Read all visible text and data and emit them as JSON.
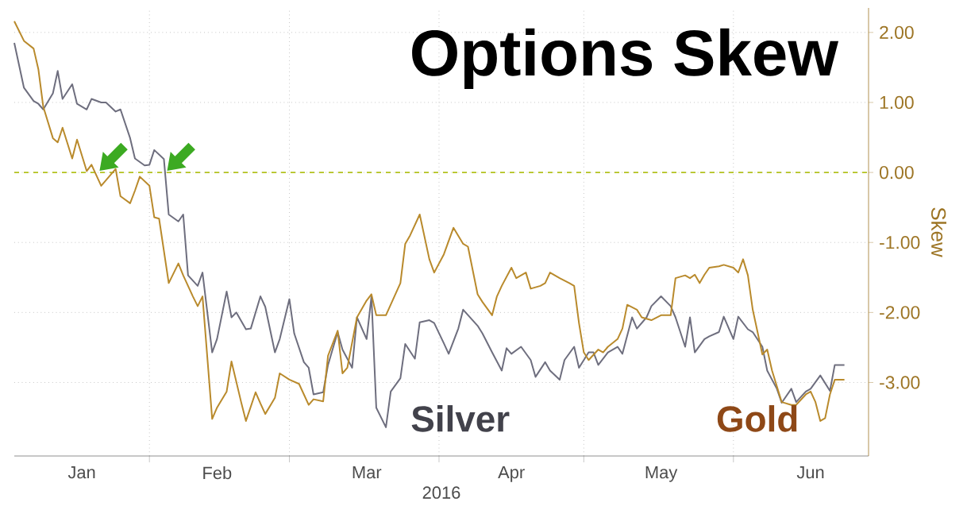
{
  "chart_data": {
    "type": "line",
    "title": "Options Skew",
    "xlabel": "2016",
    "ylabel": "Skew",
    "xlim": [
      "2016-01-04",
      "2016-06-29"
    ],
    "ylim": [
      -4.05,
      2.35
    ],
    "xticks": [
      {
        "value": "2016-01-18",
        "label": "Jan"
      },
      {
        "value": "2016-02-01",
        "label": null
      },
      {
        "value": "2016-02-15",
        "label": "Feb"
      },
      {
        "value": "2016-03-01",
        "label": null
      },
      {
        "value": "2016-03-17",
        "label": "Mar"
      },
      {
        "value": "2016-04-01",
        "label": null
      },
      {
        "value": "2016-04-16",
        "label": "Apr"
      },
      {
        "value": "2016-05-01",
        "label": null
      },
      {
        "value": "2016-05-17",
        "label": "May"
      },
      {
        "value": "2016-06-01",
        "label": null
      },
      {
        "value": "2016-06-17",
        "label": "Jun"
      }
    ],
    "yticks": [
      {
        "value": -3,
        "label": "-3.00"
      },
      {
        "value": -2,
        "label": "-2.00"
      },
      {
        "value": -1,
        "label": "-1.00"
      },
      {
        "value": 0,
        "label": "0.00"
      },
      {
        "value": 1,
        "label": "1.00"
      },
      {
        "value": 2,
        "label": "2.00"
      }
    ],
    "grid": true,
    "ref_lines": [
      {
        "axis": "y",
        "value": 0,
        "color": "#b3c21e",
        "line_style": "dashed"
      }
    ],
    "series": [
      {
        "name": "Silver",
        "color": "#6e6e7e",
        "x": [
          "2016-01-04",
          "2016-01-06",
          "2016-01-08",
          "2016-01-09",
          "2016-01-10",
          "2016-01-12",
          "2016-01-13",
          "2016-01-14",
          "2016-01-16",
          "2016-01-17",
          "2016-01-19",
          "2016-01-20",
          "2016-01-22",
          "2016-01-23",
          "2016-01-25",
          "2016-01-26",
          "2016-01-28",
          "2016-01-29",
          "2016-01-31",
          "2016-02-01",
          "2016-02-02",
          "2016-02-04",
          "2016-02-05",
          "2016-02-07",
          "2016-02-08",
          "2016-02-09",
          "2016-02-11",
          "2016-02-12",
          "2016-02-14",
          "2016-02-15",
          "2016-02-17",
          "2016-02-18",
          "2016-02-19",
          "2016-02-21",
          "2016-02-22",
          "2016-02-24",
          "2016-02-25",
          "2016-02-27",
          "2016-02-28",
          "2016-03-01",
          "2016-03-02",
          "2016-03-04",
          "2016-03-05",
          "2016-03-06",
          "2016-03-08",
          "2016-03-09",
          "2016-03-11",
          "2016-03-12",
          "2016-03-14",
          "2016-03-15",
          "2016-03-17",
          "2016-03-18",
          "2016-03-19",
          "2016-03-21",
          "2016-03-22",
          "2016-03-24",
          "2016-03-25",
          "2016-03-27",
          "2016-03-28",
          "2016-03-30",
          "2016-03-31",
          "2016-04-02",
          "2016-04-03",
          "2016-04-05",
          "2016-04-06",
          "2016-04-09",
          "2016-04-10",
          "2016-04-12",
          "2016-04-14",
          "2016-04-15",
          "2016-04-16",
          "2016-04-18",
          "2016-04-20",
          "2016-04-21",
          "2016-04-23",
          "2016-04-24",
          "2016-04-26",
          "2016-04-27",
          "2016-04-29",
          "2016-04-30",
          "2016-05-02",
          "2016-05-03",
          "2016-05-04",
          "2016-05-06",
          "2016-05-08",
          "2016-05-09",
          "2016-05-11",
          "2016-05-12",
          "2016-05-14",
          "2016-05-15",
          "2016-05-17",
          "2016-05-19",
          "2016-05-20",
          "2016-05-22",
          "2016-05-23",
          "2016-05-24",
          "2016-05-26",
          "2016-05-27",
          "2016-05-29",
          "2016-05-30",
          "2016-06-01",
          "2016-06-02",
          "2016-06-04",
          "2016-06-05",
          "2016-06-07",
          "2016-06-08",
          "2016-06-10",
          "2016-06-11",
          "2016-06-13",
          "2016-06-14",
          "2016-06-16",
          "2016-06-17",
          "2016-06-19",
          "2016-06-21",
          "2016-06-22",
          "2016-06-24"
        ],
        "values": [
          1.85,
          1.21,
          1.02,
          0.98,
          0.9,
          1.13,
          1.45,
          1.05,
          1.26,
          0.98,
          0.9,
          1.05,
          1.0,
          1.0,
          0.87,
          0.9,
          0.49,
          0.2,
          0.1,
          0.11,
          0.32,
          0.19,
          -0.6,
          -0.7,
          -0.6,
          -1.47,
          -1.62,
          -1.43,
          -2.57,
          -2.38,
          -1.7,
          -2.07,
          -2.0,
          -2.24,
          -2.23,
          -1.77,
          -1.92,
          -2.57,
          -2.38,
          -1.81,
          -2.3,
          -2.71,
          -2.79,
          -3.17,
          -3.14,
          -2.75,
          -2.28,
          -2.53,
          -2.79,
          -2.07,
          -2.38,
          -1.77,
          -3.36,
          -3.64,
          -3.13,
          -2.94,
          -2.45,
          -2.66,
          -2.14,
          -2.11,
          -2.15,
          -2.44,
          -2.59,
          -2.23,
          -1.96,
          -2.19,
          -2.3,
          -2.57,
          -2.83,
          -2.51,
          -2.59,
          -2.49,
          -2.68,
          -2.92,
          -2.71,
          -2.83,
          -2.96,
          -2.68,
          -2.49,
          -2.79,
          -2.57,
          -2.57,
          -2.75,
          -2.57,
          -2.49,
          -2.59,
          -2.07,
          -2.23,
          -2.07,
          -1.91,
          -1.77,
          -1.91,
          -2.07,
          -2.49,
          -2.07,
          -2.57,
          -2.38,
          -2.34,
          -2.28,
          -2.06,
          -2.38,
          -2.06,
          -2.24,
          -2.28,
          -2.49,
          -2.83,
          -3.09,
          -3.29,
          -3.09,
          -3.28,
          -3.13,
          -3.09,
          -2.9,
          -3.12,
          -2.75,
          -2.75
        ]
      },
      {
        "name": "Gold",
        "color": "#b98a2c",
        "x": [
          "2016-01-04",
          "2016-01-06",
          "2016-01-08",
          "2016-01-09",
          "2016-01-10",
          "2016-01-12",
          "2016-01-13",
          "2016-01-14",
          "2016-01-16",
          "2016-01-17",
          "2016-01-19",
          "2016-01-20",
          "2016-01-22",
          "2016-01-23",
          "2016-01-25",
          "2016-01-26",
          "2016-01-28",
          "2016-01-29",
          "2016-01-30",
          "2016-02-01",
          "2016-02-02",
          "2016-02-03",
          "2016-02-05",
          "2016-02-07",
          "2016-02-08",
          "2016-02-10",
          "2016-02-11",
          "2016-02-12",
          "2016-02-14",
          "2016-02-15",
          "2016-02-17",
          "2016-02-18",
          "2016-02-20",
          "2016-02-21",
          "2016-02-23",
          "2016-02-24",
          "2016-02-25",
          "2016-02-27",
          "2016-02-28",
          "2016-03-01",
          "2016-03-03",
          "2016-03-05",
          "2016-03-06",
          "2016-03-08",
          "2016-03-09",
          "2016-03-11",
          "2016-03-12",
          "2016-03-13",
          "2016-03-15",
          "2016-03-17",
          "2016-03-18",
          "2016-03-19",
          "2016-03-21",
          "2016-03-24",
          "2016-03-25",
          "2016-03-26",
          "2016-03-28",
          "2016-03-30",
          "2016-03-31",
          "2016-04-02",
          "2016-04-04",
          "2016-04-06",
          "2016-04-07",
          "2016-04-09",
          "2016-04-10",
          "2016-04-12",
          "2016-04-13",
          "2016-04-14",
          "2016-04-16",
          "2016-04-17",
          "2016-04-19",
          "2016-04-20",
          "2016-04-22",
          "2016-04-23",
          "2016-04-24",
          "2016-04-26",
          "2016-04-28",
          "2016-04-29",
          "2016-04-30",
          "2016-05-01",
          "2016-05-02",
          "2016-05-04",
          "2016-05-05",
          "2016-05-06",
          "2016-05-08",
          "2016-05-09",
          "2016-05-10",
          "2016-05-12",
          "2016-05-13",
          "2016-05-15",
          "2016-05-17",
          "2016-05-19",
          "2016-05-20",
          "2016-05-22",
          "2016-05-23",
          "2016-05-24",
          "2016-05-25",
          "2016-05-26",
          "2016-05-27",
          "2016-05-29",
          "2016-05-30",
          "2016-06-01",
          "2016-06-02",
          "2016-06-03",
          "2016-06-04",
          "2016-06-05",
          "2016-06-07",
          "2016-06-08",
          "2016-06-09",
          "2016-06-11",
          "2016-06-13",
          "2016-06-14",
          "2016-06-16",
          "2016-06-17",
          "2016-06-18",
          "2016-06-19",
          "2016-06-20",
          "2016-06-21",
          "2016-06-22",
          "2016-06-24"
        ],
        "values": [
          2.16,
          1.88,
          1.77,
          1.47,
          0.94,
          0.49,
          0.43,
          0.64,
          0.2,
          0.47,
          0.02,
          0.11,
          -0.19,
          -0.11,
          0.05,
          -0.34,
          -0.44,
          -0.26,
          -0.06,
          -0.19,
          -0.64,
          -0.66,
          -1.58,
          -1.3,
          -1.47,
          -1.77,
          -1.91,
          -1.77,
          -3.52,
          -3.36,
          -3.13,
          -2.7,
          -3.28,
          -3.55,
          -3.14,
          -3.3,
          -3.45,
          -3.22,
          -2.87,
          -2.96,
          -3.02,
          -3.32,
          -3.24,
          -3.27,
          -2.62,
          -2.26,
          -2.87,
          -2.79,
          -2.07,
          -1.83,
          -1.74,
          -2.04,
          -2.04,
          -1.58,
          -1.02,
          -0.9,
          -0.6,
          -1.24,
          -1.43,
          -1.17,
          -0.79,
          -1.02,
          -1.06,
          -1.74,
          -1.85,
          -2.04,
          -1.77,
          -1.62,
          -1.36,
          -1.51,
          -1.43,
          -1.66,
          -1.62,
          -1.58,
          -1.43,
          -1.51,
          -1.58,
          -1.62,
          -2.15,
          -2.57,
          -2.68,
          -2.53,
          -2.57,
          -2.49,
          -2.38,
          -2.23,
          -1.89,
          -1.96,
          -2.07,
          -2.11,
          -2.04,
          -2.04,
          -1.51,
          -1.47,
          -1.51,
          -1.46,
          -1.58,
          -1.46,
          -1.36,
          -1.34,
          -1.32,
          -1.36,
          -1.43,
          -1.24,
          -1.47,
          -1.96,
          -2.6,
          -2.53,
          -2.83,
          -3.28,
          -3.32,
          -3.32,
          -3.17,
          -3.13,
          -3.28,
          -3.55,
          -3.51,
          -3.17,
          -2.96,
          -2.96
        ]
      }
    ]
  }
}
